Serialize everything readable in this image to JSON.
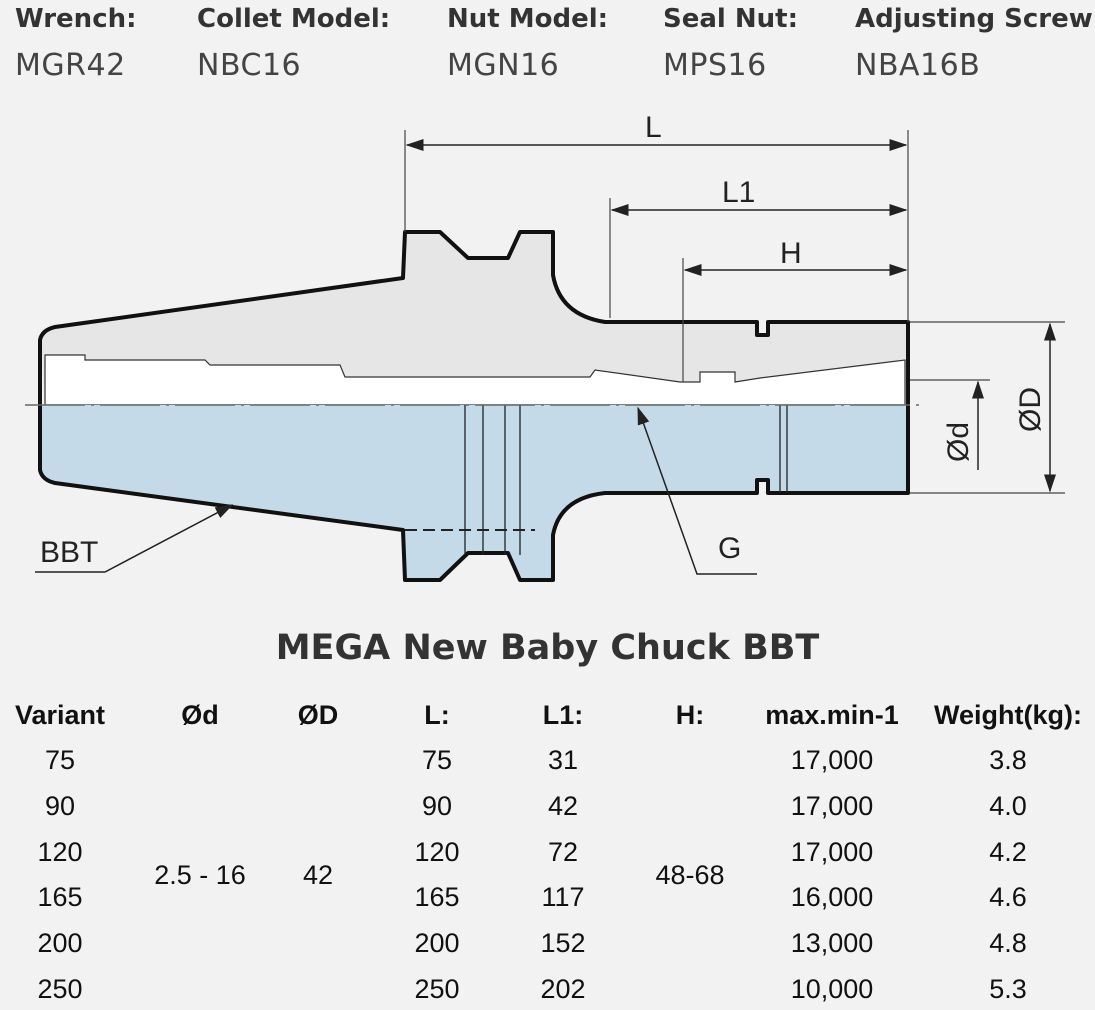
{
  "specs": [
    {
      "label": "Wrench:",
      "value": "MGR42"
    },
    {
      "label": "Collet Model:",
      "value": "NBC16"
    },
    {
      "label": "Nut Model:",
      "value": "MGN16"
    },
    {
      "label": "Seal Nut:",
      "value": "MPS16"
    },
    {
      "label": "Adjusting Screw:",
      "value": "NBA16B"
    }
  ],
  "diagram": {
    "labels": {
      "L": "L",
      "L1": "L1",
      "H": "H",
      "OD": "ØD",
      "Od": "Ød",
      "BBT": "BBT",
      "G": "G"
    },
    "colors": {
      "body_fill": "#c4dae8",
      "section_fill": "#e8e8e8",
      "outline": "#111111"
    }
  },
  "table": {
    "title": "MEGA New Baby Chuck BBT",
    "headers": [
      "Variant",
      "Ød",
      "ØD",
      "L:",
      "L1:",
      "H:",
      "max.min-1",
      "Weight(kg):"
    ],
    "merged": {
      "od_small": "2.5 - 16",
      "od_large": "42",
      "h": "48-68"
    },
    "rows": [
      {
        "variant": "75",
        "L": "75",
        "L1": "31",
        "max": "17,000",
        "weight": "3.8"
      },
      {
        "variant": "90",
        "L": "90",
        "L1": "42",
        "max": "17,000",
        "weight": "4.0"
      },
      {
        "variant": "120",
        "L": "120",
        "L1": "72",
        "max": "17,000",
        "weight": "4.2"
      },
      {
        "variant": "165",
        "L": "165",
        "L1": "117",
        "max": "16,000",
        "weight": "4.6"
      },
      {
        "variant": "200",
        "L": "200",
        "L1": "152",
        "max": "13,000",
        "weight": "4.8"
      },
      {
        "variant": "250",
        "L": "250",
        "L1": "202",
        "max": "10,000",
        "weight": "5.3"
      }
    ]
  }
}
